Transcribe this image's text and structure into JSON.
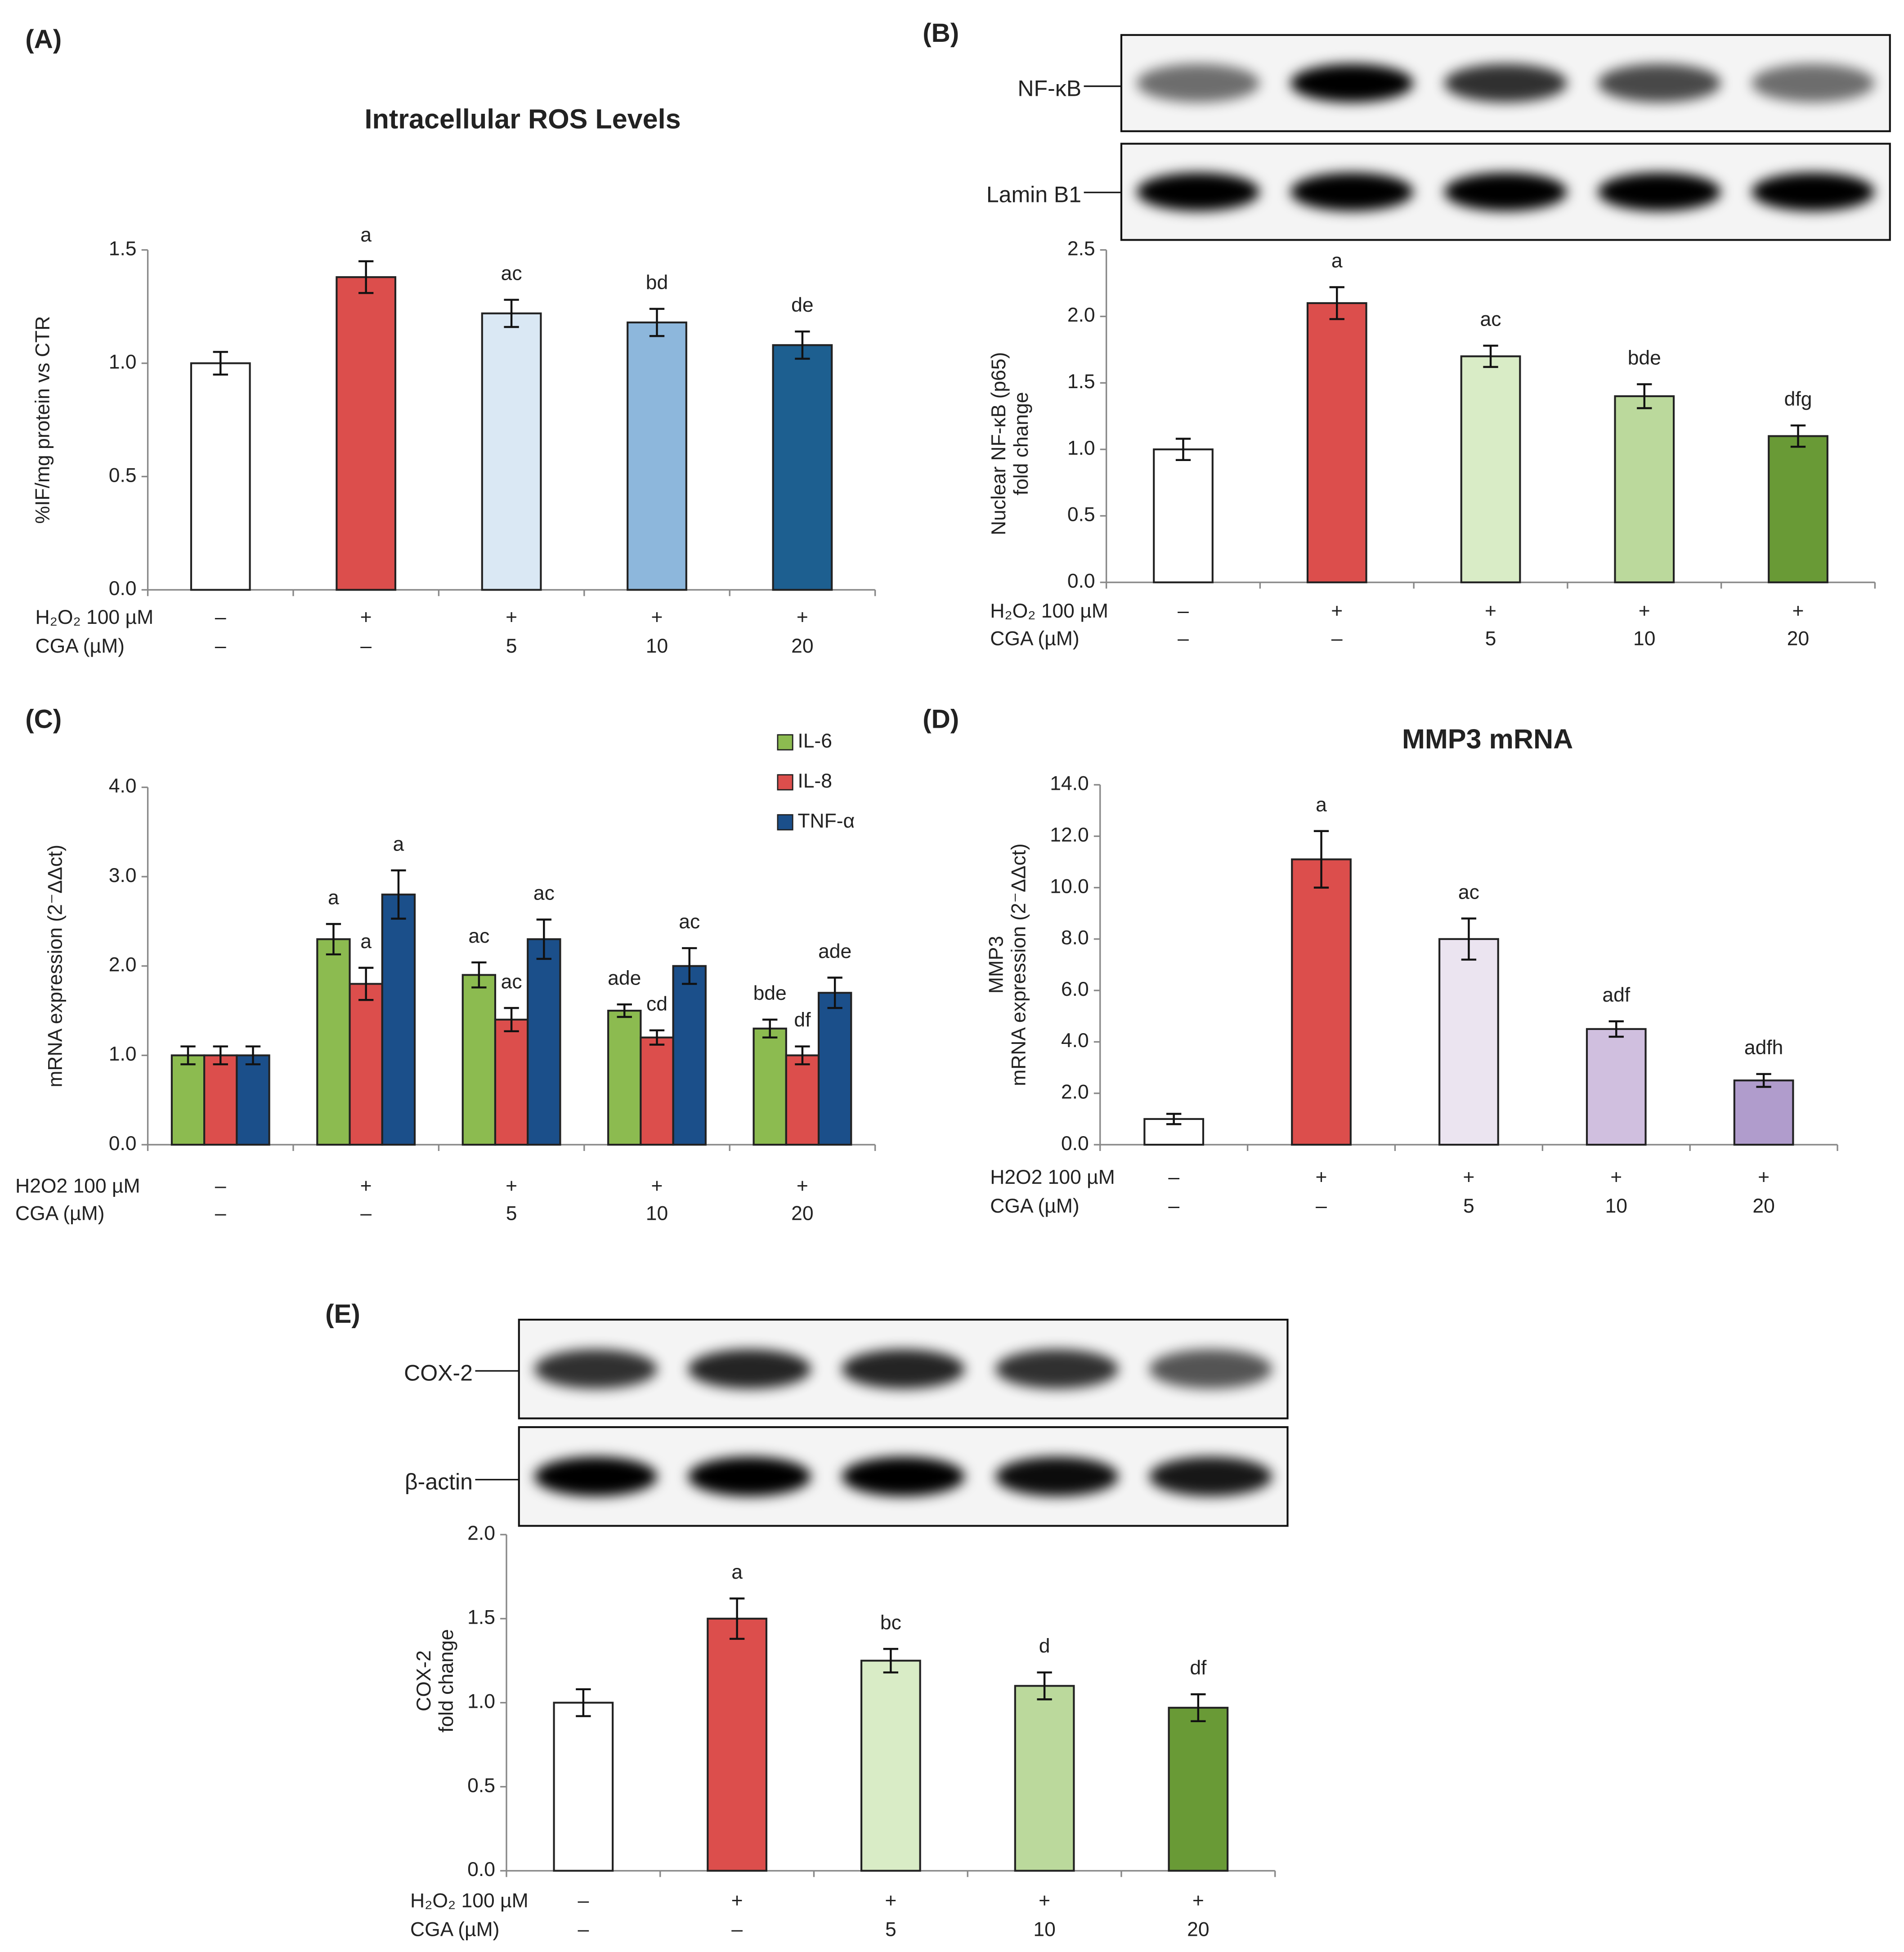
{
  "chart_data": [
    {
      "type": "bar",
      "panel": "(A)",
      "title": "Intracellular ROS Levels",
      "ylabel": [
        "%IF/mg protein vs CTR"
      ],
      "row_labels": [
        "H₂O₂ 100 µM",
        "CGA (µM)"
      ],
      "rows": [
        [
          "–",
          "+",
          "+",
          "+",
          "+"
        ],
        [
          "–",
          "–",
          "5",
          "10",
          "20"
        ]
      ],
      "values": [
        1.0,
        1.38,
        1.22,
        1.18,
        1.08
      ],
      "errors": [
        0.05,
        0.07,
        0.06,
        0.06,
        0.06
      ],
      "annotations": [
        null,
        "a",
        "ac",
        "bd",
        "de"
      ],
      "colors": [
        "#ffffff",
        "#dc4e4c",
        "#dae8f4",
        "#8db7dc",
        "#1d5f90"
      ],
      "ylim": [
        0,
        1.5
      ],
      "yticks": [
        {
          "value": 0,
          "label": "0.0"
        },
        0.5,
        {
          "value": 1,
          "label": "1.0"
        },
        1.5
      ]
    },
    {
      "type": "bar",
      "panel": "(B)",
      "ylabel": [
        "Nuclear NF-κB (p65)",
        "fold change"
      ],
      "blot_labels": [
        "NF-κB",
        "Lamin B1"
      ],
      "row_labels": [
        "H₂O₂ 100 µM",
        "CGA (µM)"
      ],
      "rows": [
        [
          "–",
          "+",
          "+",
          "+",
          "+"
        ],
        [
          "–",
          "–",
          "5",
          "10",
          "20"
        ]
      ],
      "values": [
        1.0,
        2.1,
        1.7,
        1.4,
        1.1
      ],
      "errors": [
        0.08,
        0.12,
        0.08,
        0.09,
        0.08
      ],
      "annotations": [
        null,
        "a",
        "ac",
        "bde",
        "dfg"
      ],
      "colors": [
        "#ffffff",
        "#dc4e4c",
        "#d9ecc6",
        "#bbd99c",
        "#699a36"
      ],
      "ylim": [
        0,
        2.5
      ],
      "yticks": [
        {
          "value": 0,
          "label": "0.0"
        },
        0.5,
        {
          "value": 1,
          "label": "1.0"
        },
        1.5,
        {
          "value": 2,
          "label": "2.0"
        },
        2.5
      ]
    },
    {
      "type": "bar",
      "panel": "(C)",
      "ylabel": [
        "mRNA expression (2⁻ΔΔct)"
      ],
      "row_labels": [
        "H2O2 100 µM",
        "CGA (µM)"
      ],
      "rows": [
        [
          "–",
          "+",
          "+",
          "+",
          "+"
        ],
        [
          "–",
          "–",
          "5",
          "10",
          "20"
        ]
      ],
      "legend": "upper right",
      "series": [
        {
          "name": "IL-6",
          "color": "#8cbb50",
          "values": [
            1.0,
            2.3,
            1.9,
            1.5,
            1.3
          ],
          "errors": [
            0.1,
            0.17,
            0.14,
            0.07,
            0.1
          ],
          "annotations": [
            null,
            "a",
            "ac",
            "ade",
            "bde"
          ]
        },
        {
          "name": "IL-8",
          "color": "#dc4e4c",
          "values": [
            1.0,
            1.8,
            1.4,
            1.2,
            1.0
          ],
          "errors": [
            0.1,
            0.18,
            0.13,
            0.08,
            0.1
          ],
          "annotations": [
            null,
            "a",
            "ac",
            "cd",
            "df"
          ]
        },
        {
          "name": "TNF-α",
          "color": "#1b4f8a",
          "values": [
            1.0,
            2.8,
            2.3,
            2.0,
            1.7
          ],
          "errors": [
            0.1,
            0.27,
            0.22,
            0.2,
            0.17
          ],
          "annotations": [
            null,
            "a",
            "ac",
            "ac",
            "ade"
          ]
        }
      ],
      "ylim": [
        0,
        4
      ],
      "yticks": [
        {
          "value": 0,
          "label": "0.0"
        },
        {
          "value": 1,
          "label": "1.0"
        },
        {
          "value": 2,
          "label": "2.0"
        },
        {
          "value": 3,
          "label": "3.0"
        },
        {
          "value": 4,
          "label": "4.0"
        }
      ]
    },
    {
      "type": "bar",
      "panel": "(D)",
      "title": "MMP3 mRNA",
      "ylabel": [
        "MMP3",
        "mRNA expression (2⁻ΔΔct)"
      ],
      "row_labels": [
        "H2O2 100 µM",
        "CGA (µM)"
      ],
      "rows": [
        [
          "–",
          "+",
          "+",
          "+",
          "+"
        ],
        [
          "–",
          "–",
          "5",
          "10",
          "20"
        ]
      ],
      "values": [
        1.0,
        11.1,
        8.0,
        4.5,
        2.5
      ],
      "errors": [
        0.2,
        1.1,
        0.8,
        0.3,
        0.25
      ],
      "annotations": [
        null,
        "a",
        "ac",
        "adf",
        "adfh"
      ],
      "colors": [
        "#ffffff",
        "#dc4e4c",
        "#ebe4f0",
        "#d0bfdf",
        "#b09ccc"
      ],
      "ylim": [
        0,
        14
      ],
      "yticks": [
        {
          "value": 0,
          "label": "0.0"
        },
        {
          "value": 2,
          "label": "2.0"
        },
        {
          "value": 4,
          "label": "4.0"
        },
        {
          "value": 6,
          "label": "6.0"
        },
        {
          "value": 8,
          "label": "8.0"
        },
        {
          "value": 10,
          "label": "10.0"
        },
        {
          "value": 12,
          "label": "12.0"
        },
        {
          "value": 14,
          "label": "14.0"
        }
      ]
    },
    {
      "type": "bar",
      "panel": "(E)",
      "ylabel": [
        "COX-2",
        "fold change"
      ],
      "blot_labels": [
        "COX-2",
        "β-actin"
      ],
      "row_labels": [
        "H₂O₂ 100 µM",
        "CGA (µM)"
      ],
      "rows": [
        [
          "–",
          "+",
          "+",
          "+",
          "+"
        ],
        [
          "–",
          "–",
          "5",
          "10",
          "20"
        ]
      ],
      "values": [
        1.0,
        1.5,
        1.25,
        1.1,
        0.97
      ],
      "errors": [
        0.08,
        0.12,
        0.07,
        0.08,
        0.08
      ],
      "annotations": [
        null,
        "a",
        "bc",
        "d",
        "df"
      ],
      "colors": [
        "#ffffff",
        "#dc4e4c",
        "#d9ecc6",
        "#bbd99c",
        "#699a36"
      ],
      "ylim": [
        0,
        2
      ],
      "yticks": [
        {
          "value": 0,
          "label": "0.0"
        },
        0.5,
        {
          "value": 1,
          "label": "1.0"
        },
        1.5,
        {
          "value": 2,
          "label": "2.0"
        }
      ]
    }
  ]
}
